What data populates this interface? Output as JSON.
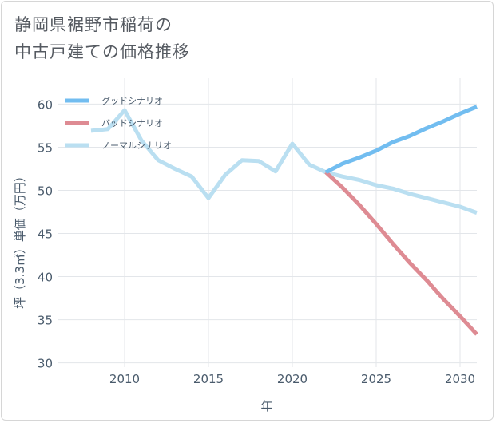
{
  "title": {
    "line1": "静岡県裾野市稲荷の",
    "line2": "中古戸建ての価格推移"
  },
  "chart_data": {
    "type": "line",
    "xlabel": "年",
    "ylabel": "坪（3.3㎡）単価（万円）",
    "xlim": [
      2006,
      2031
    ],
    "ylim": [
      29.5,
      63
    ],
    "x_ticks": [
      "2010",
      "2015",
      "2020",
      "2025",
      "2030"
    ],
    "y_ticks": [
      "30",
      "35",
      "40",
      "45",
      "50",
      "55",
      "60"
    ],
    "grid": true,
    "legend_position": "top-left",
    "series": [
      {
        "name": "グッドシナリオ",
        "color": "#72bdf0",
        "x": [
          2022,
          2023,
          2024,
          2025,
          2026,
          2027,
          2028,
          2029,
          2030,
          2031
        ],
        "y": [
          52.1,
          53.1,
          53.8,
          54.6,
          55.6,
          56.3,
          57.2,
          58.0,
          58.9,
          59.7
        ]
      },
      {
        "name": "バッドシナリオ",
        "color": "#de8b93",
        "x": [
          2022,
          2023,
          2024,
          2025,
          2026,
          2027,
          2028,
          2029,
          2030,
          2031
        ],
        "y": [
          52.1,
          50.3,
          48.3,
          46.1,
          43.8,
          41.6,
          39.6,
          37.4,
          35.4,
          33.3
        ]
      },
      {
        "name": "ノーマルシナリオ",
        "color": "#badff1",
        "x": [
          2008,
          2009,
          2010,
          2011,
          2012,
          2013,
          2014,
          2015,
          2016,
          2017,
          2018,
          2019,
          2020,
          2021,
          2022,
          2023,
          2024,
          2025,
          2026,
          2027,
          2028,
          2029,
          2030,
          2031
        ],
        "y": [
          56.9,
          57.1,
          59.3,
          55.8,
          53.5,
          52.5,
          51.6,
          49.1,
          51.8,
          53.5,
          53.4,
          52.2,
          55.4,
          53.0,
          52.1,
          51.6,
          51.2,
          50.6,
          50.2,
          49.6,
          49.1,
          48.6,
          48.1,
          47.4
        ]
      }
    ]
  }
}
